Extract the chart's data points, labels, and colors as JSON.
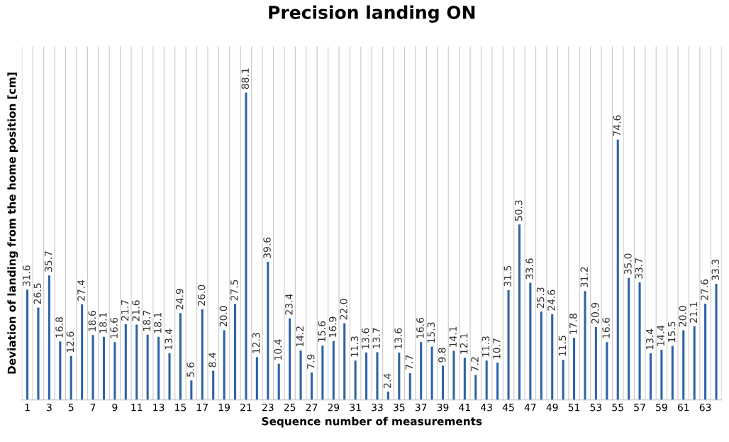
{
  "chart_data": {
    "type": "bar",
    "title": "Precision landing ON",
    "xlabel": "Sequence number of measurements",
    "ylabel": "Deviation of landing from the home position [cm]",
    "categories": [
      "1",
      null,
      "3",
      null,
      "5",
      null,
      "7",
      null,
      "9",
      null,
      "11",
      null,
      "13",
      null,
      "15",
      null,
      "17",
      null,
      "19",
      null,
      "21",
      null,
      "23",
      null,
      "25",
      null,
      "27",
      null,
      "29",
      null,
      "31",
      null,
      "33",
      null,
      "35",
      null,
      "37",
      null,
      "39",
      null,
      "41",
      null,
      "43",
      null,
      "45",
      null,
      "47",
      null,
      "49",
      null,
      "51",
      null,
      "53",
      null,
      "55",
      null,
      "57",
      null,
      "59",
      null,
      "61",
      null,
      "63",
      null
    ],
    "series": [
      {
        "color": "#2e64a8",
        "values": [
          31.6,
          26.5,
          35.7,
          16.8,
          12.6,
          27.4,
          18.6,
          18.1,
          16.6,
          21.7,
          21.6,
          18.7,
          18.1,
          13.4,
          24.9,
          5.6,
          26.0,
          8.4,
          20.0,
          27.5,
          88.1,
          12.3,
          39.6,
          10.4,
          23.4,
          14.2,
          7.9,
          15.6,
          16.9,
          22.0,
          11.3,
          13.6,
          13.7,
          2.4,
          13.6,
          7.7,
          16.6,
          15.3,
          9.8,
          14.1,
          12.1,
          7.2,
          11.3,
          10.7,
          31.5,
          50.3,
          33.6,
          25.3,
          24.6,
          11.5,
          17.8,
          31.2,
          20.9,
          16.6,
          74.6,
          35.0,
          33.7,
          13.4,
          14.4,
          15.5,
          20.0,
          21.1,
          27.6,
          33.3
        ],
        "value_labels": [
          "31.6",
          "26.5",
          "35.7",
          "16.8",
          "12.6",
          "27.4",
          "18.6",
          "18.1",
          "16.6",
          "21.7",
          "21.6",
          "18.7",
          "18.1",
          "13.4",
          "24.9",
          "5.6",
          "26.0",
          "8.4",
          "20.0",
          "27.5",
          "88.1",
          "12.3",
          "39.6",
          "10.4",
          "23.4",
          "14.2",
          "7.9",
          "15.6",
          "16.9",
          "22.0",
          "11.3",
          "13.6",
          "13.7",
          "2.4",
          "13.6",
          "7.7",
          "16.6",
          "15.3",
          "9.8",
          "14.1",
          "12.1",
          "7.2",
          "11.3",
          "10.7",
          "31.5",
          "50.3",
          "33.6",
          "25.3",
          "24.6",
          "11.5",
          "17.8",
          "31.2",
          "20.9",
          "16.6",
          "74.6",
          "35.0",
          "33.7",
          "13.4",
          "14.4",
          "15.5",
          "20.0",
          "21.1",
          "27.6",
          "33.3"
        ]
      }
    ],
    "grid": "x",
    "tick_labels": "x"
  }
}
